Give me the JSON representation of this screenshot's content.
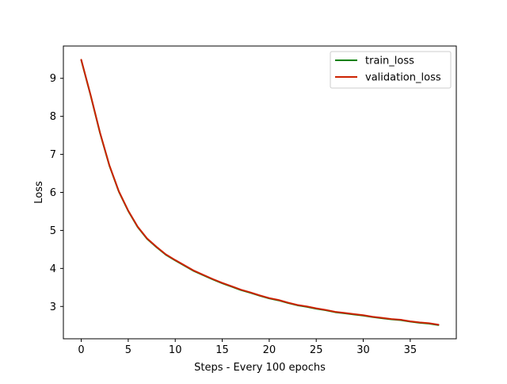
{
  "chart_data": {
    "type": "line",
    "xlabel": "Steps - Every 100 epochs",
    "ylabel": "Loss",
    "xlim": [
      -1.9,
      39.9
    ],
    "ylim": [
      2.15,
      9.85
    ],
    "xticks": [
      0,
      5,
      10,
      15,
      20,
      25,
      30,
      35
    ],
    "yticks": [
      3,
      4,
      5,
      6,
      7,
      8,
      9
    ],
    "grid": false,
    "legend_position": "top-right",
    "x": [
      0,
      1,
      2,
      3,
      4,
      5,
      6,
      7,
      8,
      9,
      10,
      11,
      12,
      13,
      14,
      15,
      16,
      17,
      18,
      19,
      20,
      21,
      22,
      23,
      24,
      25,
      26,
      27,
      28,
      29,
      30,
      31,
      32,
      33,
      34,
      35,
      36,
      37,
      38
    ],
    "series": [
      {
        "name": "train_loss",
        "color": "#008000",
        "values": [
          9.48,
          8.55,
          7.56,
          6.7,
          6.02,
          5.51,
          5.09,
          4.78,
          4.56,
          4.36,
          4.21,
          4.07,
          3.93,
          3.82,
          3.71,
          3.61,
          3.52,
          3.43,
          3.36,
          3.28,
          3.21,
          3.16,
          3.09,
          3.03,
          2.99,
          2.94,
          2.9,
          2.85,
          2.82,
          2.79,
          2.76,
          2.72,
          2.69,
          2.66,
          2.64,
          2.6,
          2.57,
          2.55,
          2.51
        ]
      },
      {
        "name": "validation_loss",
        "color": "#cc2200",
        "values": [
          9.49,
          8.56,
          7.57,
          6.71,
          6.03,
          5.52,
          5.1,
          4.79,
          4.57,
          4.37,
          4.22,
          4.08,
          3.94,
          3.83,
          3.72,
          3.62,
          3.53,
          3.44,
          3.37,
          3.29,
          3.22,
          3.17,
          3.1,
          3.04,
          3.0,
          2.95,
          2.91,
          2.86,
          2.83,
          2.8,
          2.77,
          2.73,
          2.7,
          2.67,
          2.65,
          2.61,
          2.58,
          2.56,
          2.52
        ]
      }
    ]
  }
}
